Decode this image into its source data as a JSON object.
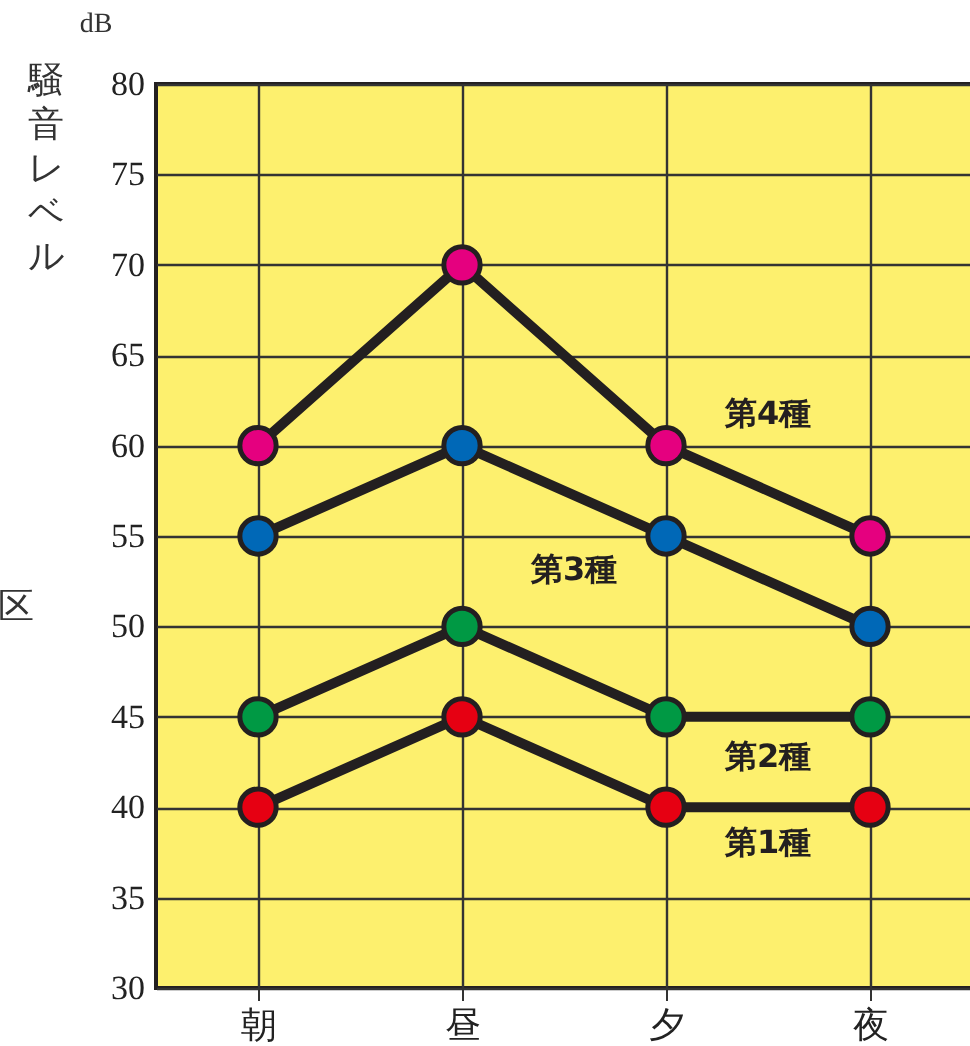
{
  "chart_data": {
    "type": "line",
    "ylabel": "騒音レベル",
    "annotations": [
      "dB",
      "区"
    ],
    "categories": [
      "朝",
      "昼",
      "夕",
      "夜"
    ],
    "series": [
      {
        "name": "第1種",
        "color": "#e60012",
        "values": [
          40,
          45,
          40,
          40
        ]
      },
      {
        "name": "第2種",
        "color": "#009944",
        "values": [
          45,
          50,
          45,
          45
        ]
      },
      {
        "name": "第3種",
        "color": "#0068b7",
        "values": [
          55,
          60,
          55,
          50
        ]
      },
      {
        "name": "第4種",
        "color": "#e5007f",
        "values": [
          60,
          70,
          60,
          55
        ]
      }
    ],
    "ylim": [
      30,
      80
    ],
    "yticks": [
      30,
      35,
      40,
      45,
      50,
      55,
      60,
      65,
      70,
      75,
      80
    ],
    "grid": true,
    "marker": "circle",
    "line_style": "solid"
  }
}
